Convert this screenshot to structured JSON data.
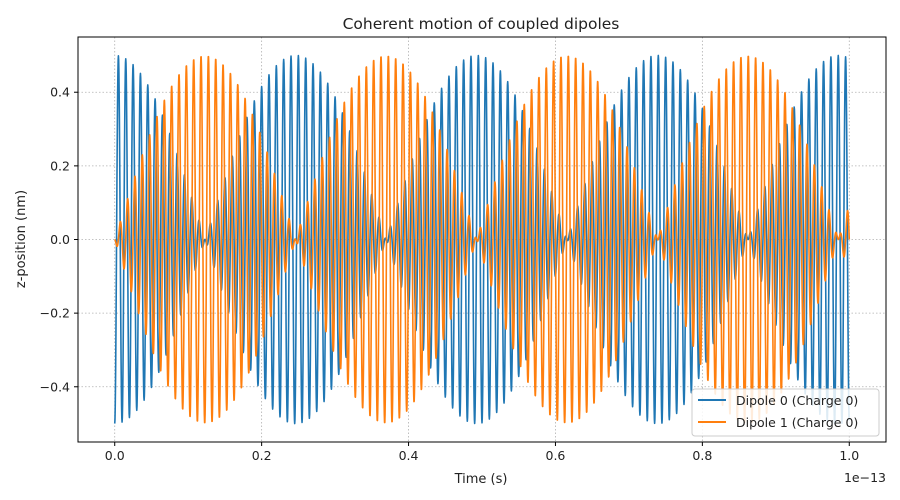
{
  "chart_data": {
    "type": "line",
    "title": "Coherent motion of coupled dipoles",
    "xlabel": "Time (s)",
    "ylabel": "z-position (nm)",
    "x_offset_text": "1e−13",
    "xlim": [
      -0.05,
      1.05
    ],
    "ylim": [
      -0.55,
      0.55
    ],
    "xticks": [
      0.0,
      0.2,
      0.4,
      0.6,
      0.8,
      1.0
    ],
    "xtick_labels": [
      "0.0",
      "0.2",
      "0.4",
      "0.6",
      "0.8",
      "1.0"
    ],
    "yticks": [
      -0.4,
      -0.2,
      0.0,
      0.2,
      0.4
    ],
    "ytick_labels": [
      "−0.4",
      "−0.2",
      "0.0",
      "0.2",
      "0.4"
    ],
    "grid": true,
    "legend_position": "bottom-right",
    "series": [
      {
        "name": "Dipole 0 (Charge 0)",
        "color": "#1f77b4",
        "amplitude": 0.5,
        "envelope": "cos",
        "beat_period": 0.2463,
        "carrier_period": 0.01
      },
      {
        "name": "Dipole 1 (Charge 0)",
        "color": "#ff7f0e",
        "amplitude": 0.5,
        "envelope": "sin",
        "beat_period": 0.2463,
        "carrier_period": 0.01
      }
    ]
  }
}
